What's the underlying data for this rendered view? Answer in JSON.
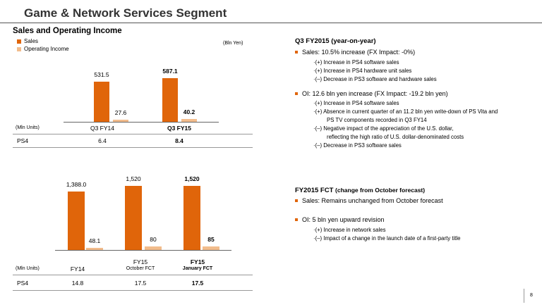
{
  "header": {
    "title": "Game & Network Services Segment"
  },
  "left_top": {
    "section_title": "Sales and Operating Income",
    "legend": [
      {
        "label": "Sales",
        "color": "#e0650a"
      },
      {
        "label": "Operating Income",
        "color": "#f2bc8c"
      }
    ],
    "unit": "(Bln Yen)",
    "chart_data": {
      "type": "bar",
      "categories": [
        "Q3 FY14",
        "Q3 FY15"
      ],
      "series": [
        {
          "name": "Sales",
          "values": [
            531.5,
            587.1
          ],
          "labels": [
            "531.5",
            "587.1"
          ]
        },
        {
          "name": "Operating Income",
          "values": [
            27.6,
            40.2
          ],
          "labels": [
            "27.6",
            "40.2"
          ]
        }
      ],
      "ylim": [
        0,
        620
      ]
    },
    "table": {
      "unit": "(Mln Units)",
      "row_label": "PS4",
      "values": [
        "6.4",
        "8.4"
      ]
    }
  },
  "left_bottom": {
    "chart_data": {
      "type": "bar",
      "categories": [
        "FY14",
        "FY15 October FCT",
        "FY15 January FCT"
      ],
      "series": [
        {
          "name": "Sales",
          "values": [
            1388.0,
            1520,
            1520
          ],
          "labels": [
            "1,388.0",
            "1,520",
            "1,520"
          ]
        },
        {
          "name": "Operating Income",
          "values": [
            48.1,
            80,
            85
          ],
          "labels": [
            "48.1",
            "80",
            "85"
          ]
        }
      ],
      "ylim": [
        0,
        1650
      ]
    },
    "table": {
      "unit": "(Mln Units)",
      "col1": "FY14",
      "col2_line1": "FY15",
      "col2_line2": "October FCT",
      "col3_line1": "FY15",
      "col3_line2": "January FCT",
      "row_label": "PS4",
      "values": [
        "14.8",
        "17.5",
        "17.5"
      ]
    }
  },
  "right_top": {
    "heading": "Q3 FY2015 (year-on-year)",
    "sales_bullet": "Sales: 10.5% increase (FX Impact:  -0%)",
    "sales_subs": [
      "·(+) Increase in PS4 software sales",
      "·(+) Increase in PS4 hardware unit sales",
      "·(–) Decrease in PS3 software and hardware sales"
    ],
    "oi_bullet": "OI:  12.6 bln yen increase (FX Impact:  -19.2 bln yen)",
    "oi_subs": [
      "·(+) Increase in PS4 software sales",
      "·(+) Absence in current quarter of an 11.2 bln yen write-down of PS Vita and",
      "PS TV components recorded in Q3 FY14",
      "·(–) Negative impact of the appreciation of the U.S. dollar,",
      "reflecting the high ratio of U.S. dollar-denominated costs",
      "·(–) Decrease in PS3 software sales"
    ]
  },
  "right_bottom": {
    "heading": "FY2015 FCT",
    "heading_suffix": "(change from October forecast)",
    "sales_bullet": "Sales: Remains unchanged from October forecast",
    "oi_bullet": "OI: 5 bln yen upward revision",
    "oi_subs": [
      "·(+) Increase in network sales",
      "·(–) Impact of a change in the launch date of a first-party title"
    ]
  },
  "footer": {
    "page_number": "8"
  }
}
